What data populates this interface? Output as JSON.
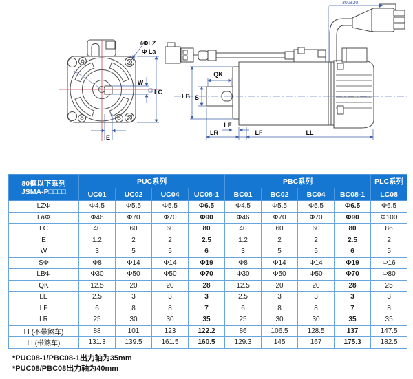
{
  "diagram": {
    "front": {
      "bolt_holes": "4ΦLZ",
      "flange_dia": "Φ La",
      "key_width": "W",
      "frame_size": "LC",
      "offset_e": "E"
    },
    "side": {
      "cable_len": "300±30",
      "qk": "QK",
      "lb": "LB",
      "s": "S",
      "le": "LE",
      "lr": "LR",
      "lf": "LF",
      "ll": "LL"
    }
  },
  "table": {
    "corner": {
      "line1": "80框以下系列",
      "line2": "JSMA-P□□□□"
    },
    "groups": [
      {
        "label": "PUC系列",
        "span": 4
      },
      {
        "label": "PBC系列",
        "span": 4
      },
      {
        "label": "PLC系列",
        "span": 1
      }
    ],
    "columns": [
      "UC01",
      "UC02",
      "UC04",
      "UC08-1",
      "BC01",
      "BC02",
      "BC04",
      "BC08-1",
      "LC08"
    ],
    "rows": [
      {
        "label": "LZΦ",
        "values": [
          "Φ4.5",
          "Φ5.5",
          "Φ5.5",
          "Φ6.5",
          "Φ4.5",
          "Φ5.5",
          "Φ5.5",
          "Φ6.5",
          "Φ6.5"
        ]
      },
      {
        "label": "LaΦ",
        "values": [
          "Φ46",
          "Φ70",
          "Φ70",
          "Φ90",
          "Φ46",
          "Φ70",
          "Φ70",
          "Φ90",
          "Φ100"
        ]
      },
      {
        "label": "LC",
        "values": [
          "40",
          "60",
          "60",
          "80",
          "40",
          "60",
          "60",
          "80",
          "86"
        ]
      },
      {
        "label": "E",
        "values": [
          "1.2",
          "2",
          "2",
          "2.5",
          "1.2",
          "2",
          "2",
          "2.5",
          "2"
        ]
      },
      {
        "label": "W",
        "values": [
          "3",
          "5",
          "5",
          "6",
          "3",
          "5",
          "5",
          "6",
          "5"
        ]
      },
      {
        "label": "SΦ",
        "values": [
          "Φ8",
          "Φ14",
          "Φ14",
          "Φ19",
          "Φ8",
          "Φ14",
          "Φ14",
          "Φ19",
          "Φ16"
        ]
      },
      {
        "label": "LBΦ",
        "values": [
          "Φ30",
          "Φ50",
          "Φ50",
          "Φ70",
          "Φ30",
          "Φ50",
          "Φ50",
          "Φ70",
          "Φ80"
        ]
      },
      {
        "label": "QK",
        "values": [
          "12.5",
          "20",
          "20",
          "28",
          "12.5",
          "20",
          "20",
          "28",
          "25"
        ]
      },
      {
        "label": "LE",
        "values": [
          "2.5",
          "3",
          "3",
          "3",
          "2.5",
          "3",
          "3",
          "3",
          "3"
        ]
      },
      {
        "label": "LF",
        "values": [
          "6",
          "8",
          "8",
          "7",
          "6",
          "8",
          "8",
          "7",
          "8"
        ]
      },
      {
        "label": "LR",
        "values": [
          "25",
          "30",
          "30",
          "35",
          "25",
          "30",
          "30",
          "35",
          "35"
        ]
      },
      {
        "label": "LL(不带煞车)",
        "values": [
          "88",
          "101",
          "123",
          "122.2",
          "86",
          "106.5",
          "128.5",
          "137",
          "147.5"
        ]
      },
      {
        "label": "LL(带煞车)",
        "values": [
          "131.3",
          "139.5",
          "161.5",
          "160.5",
          "129.3",
          "145",
          "167",
          "175.3",
          "182.5"
        ]
      }
    ]
  },
  "footnotes": [
    "*PUC08-1/PBC08-1出力轴为35mm",
    "*PUC08/PBC08出力轴为40mm"
  ],
  "colors": {
    "header_bg": "#1677d2",
    "grid": "#6aa6de",
    "outline": "#4a4a4a",
    "dimension": "#3d5fa8",
    "centerline_red": "#c0504d",
    "centerline_blue": "#6b7fc4"
  }
}
